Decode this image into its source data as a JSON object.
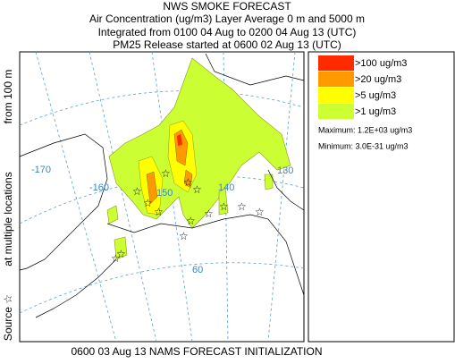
{
  "header": {
    "title": "NWS SMOKE FORECAST",
    "lines": [
      "Air Concentration (ug/m3) Layer Average    0 m and  5000 m",
      "Integrated from 0100 04 Aug to 0200 04 Aug 13 (UTC)",
      "PM25 Release started at 0600 02 Aug 13 (UTC)"
    ]
  },
  "side_labels": [
    "Source ☆",
    "at multiple locations",
    "from  100 m"
  ],
  "map": {
    "grid_labels": [
      "-170",
      "-160",
      "150",
      "140",
      "130",
      "60"
    ]
  },
  "legend": {
    "items": [
      {
        "label": ">100 ug/m3",
        "color": "#ff2a00"
      },
      {
        "label": ">20 ug/m3",
        "color": "#ff9900"
      },
      {
        "label": ">5 ug/m3",
        "color": "#ffff00"
      },
      {
        "label": ">1 ug/m3",
        "color": "#ccff33"
      }
    ],
    "maximum": "Maximum: 1.2E+03 ug/m3",
    "minimum": "Minimum: 3.0E-31 ug/m3"
  },
  "footer": "0600 03 Aug 13 NAMS FORECAST INITIALIZATION"
}
